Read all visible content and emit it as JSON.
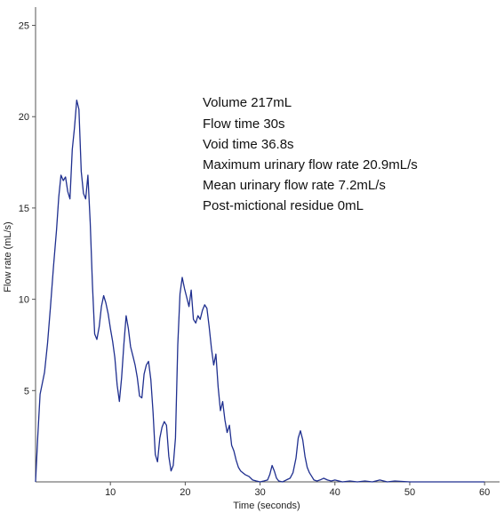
{
  "chart_data": {
    "type": "line",
    "title": "",
    "xlabel": "Time (seconds)",
    "ylabel": "Flow rate (mL/s)",
    "xlim": [
      0,
      62
    ],
    "ylim": [
      0,
      26
    ],
    "x_ticks": [
      10,
      20,
      30,
      40,
      50,
      60
    ],
    "y_ticks": [
      5,
      10,
      15,
      20,
      25
    ],
    "grid": false,
    "line_color": "#1f2f8f",
    "annotations": [
      "Volume 217mL",
      "Flow time 30s",
      "Void time 36.8s",
      "Maximum urinary flow rate 20.9mL/s",
      "Mean urinary flow rate 7.2mL/s",
      "Post-mictional residue 0mL"
    ],
    "series": [
      {
        "x": [
          0,
          0.3,
          0.6,
          0.9,
          1.2,
          1.6,
          2.0,
          2.4,
          2.8,
          3.1,
          3.4,
          3.7,
          4.0,
          4.3,
          4.6,
          4.9,
          5.2,
          5.5,
          5.8,
          6.1,
          6.4,
          6.7,
          7.0,
          7.3,
          7.6,
          7.9,
          8.2,
          8.5,
          8.8,
          9.1,
          9.4,
          9.7,
          10.0,
          10.3,
          10.6,
          10.9,
          11.2,
          11.5,
          11.8,
          12.1,
          12.4,
          12.7,
          13.0,
          13.3,
          13.6,
          13.9,
          14.2,
          14.5,
          14.8,
          15.1,
          15.4,
          15.7,
          16.0,
          16.3,
          16.6,
          16.9,
          17.2,
          17.5,
          17.8,
          18.1,
          18.4,
          18.7,
          19.0,
          19.3,
          19.6,
          19.9,
          20.2,
          20.5,
          20.8,
          21.1,
          21.4,
          21.7,
          22.0,
          22.3,
          22.6,
          22.9,
          23.2,
          23.5,
          23.8,
          24.1,
          24.4,
          24.7,
          25.0,
          25.3,
          25.6,
          25.9,
          26.2,
          26.5,
          26.8,
          27.1,
          27.4,
          27.7,
          28.0,
          28.5,
          29.0,
          29.5,
          30.0,
          30.5,
          31.0,
          31.3,
          31.6,
          31.9,
          32.2,
          32.5,
          33.0,
          33.5,
          34.0,
          34.4,
          34.8,
          35.1,
          35.4,
          35.7,
          36.0,
          36.3,
          36.6,
          36.9,
          37.2,
          37.6,
          38.0,
          38.5,
          39.0,
          39.5,
          40.0,
          41.0,
          42.0,
          43.0,
          44.0,
          45.0,
          46.0,
          47.0,
          48.0,
          50.0,
          52.0,
          55.0,
          58.0,
          60.0
        ],
        "y": [
          0,
          2.5,
          4.8,
          5.4,
          6.0,
          7.6,
          9.6,
          11.8,
          13.8,
          15.6,
          16.8,
          16.5,
          16.7,
          15.9,
          15.5,
          18.2,
          19.4,
          20.9,
          20.4,
          17.0,
          15.8,
          15.5,
          16.8,
          14.2,
          10.8,
          8.1,
          7.8,
          8.5,
          9.6,
          10.2,
          9.8,
          9.2,
          8.4,
          7.7,
          6.8,
          5.3,
          4.4,
          5.7,
          7.5,
          9.1,
          8.4,
          7.4,
          6.9,
          6.4,
          5.7,
          4.7,
          4.6,
          5.9,
          6.4,
          6.6,
          5.6,
          3.8,
          1.5,
          1.1,
          2.4,
          3.0,
          3.3,
          3.1,
          1.4,
          0.6,
          0.9,
          2.4,
          7.5,
          10.3,
          11.2,
          10.6,
          10.1,
          9.6,
          10.5,
          8.9,
          8.7,
          9.1,
          8.9,
          9.4,
          9.7,
          9.5,
          8.5,
          7.3,
          6.4,
          7.0,
          5.2,
          3.9,
          4.4,
          3.4,
          2.7,
          3.1,
          2.0,
          1.7,
          1.2,
          0.8,
          0.6,
          0.5,
          0.4,
          0.3,
          0.1,
          0.05,
          0.0,
          0.05,
          0.1,
          0.4,
          0.9,
          0.6,
          0.2,
          0.05,
          0.0,
          0.1,
          0.2,
          0.5,
          1.3,
          2.4,
          2.8,
          2.3,
          1.4,
          0.8,
          0.5,
          0.3,
          0.1,
          0.05,
          0.1,
          0.2,
          0.1,
          0.05,
          0.1,
          0.0,
          0.05,
          0.0,
          0.05,
          0.0,
          0.1,
          0.0,
          0.05,
          0.0,
          0.0,
          0.0,
          0.0,
          0.0
        ]
      }
    ]
  }
}
